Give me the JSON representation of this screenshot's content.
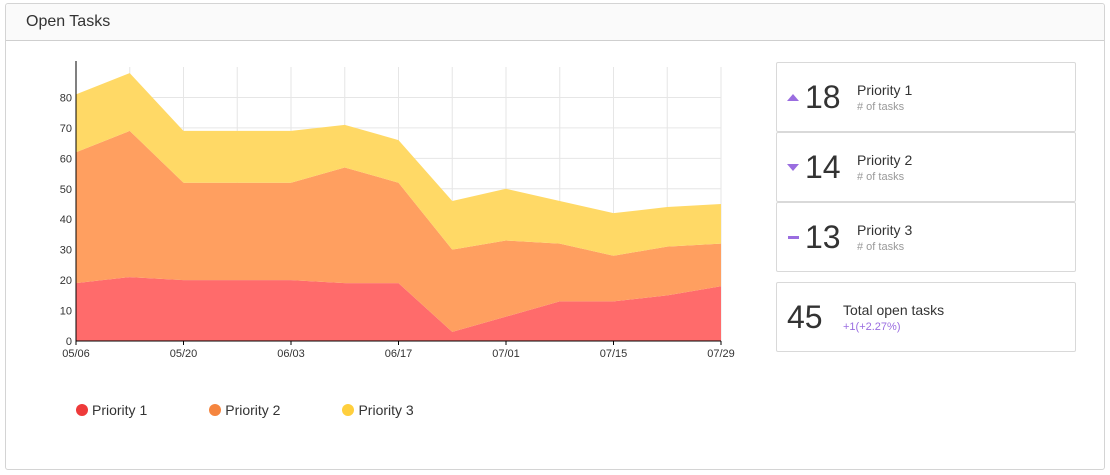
{
  "panel": {
    "title": "Open Tasks"
  },
  "chart_data": {
    "type": "area",
    "stacked": true,
    "x": [
      "05/06",
      "05/13",
      "05/20",
      "05/27",
      "06/03",
      "06/10",
      "06/17",
      "06/24",
      "07/01",
      "07/08",
      "07/15",
      "07/22",
      "07/29"
    ],
    "x_tick_labels": [
      "05/06",
      "05/20",
      "06/03",
      "06/17",
      "07/01",
      "07/15",
      "07/29"
    ],
    "series": [
      {
        "name": "Priority 1",
        "color": "#ff6b6b",
        "values": [
          19,
          21,
          20,
          20,
          20,
          19,
          19,
          3,
          8,
          13,
          13,
          15,
          18
        ]
      },
      {
        "name": "Priority 2",
        "color": "#ff9f60",
        "values": [
          43,
          48,
          32,
          32,
          32,
          38,
          33,
          27,
          25,
          19,
          15,
          16,
          14
        ]
      },
      {
        "name": "Priority 3",
        "color": "#ffd966",
        "values": [
          19,
          19,
          17,
          17,
          17,
          14,
          14,
          16,
          17,
          14,
          14,
          13,
          13
        ]
      }
    ],
    "ylim": [
      0,
      90
    ],
    "y_ticks": [
      0,
      10,
      20,
      30,
      40,
      50,
      60,
      70,
      80
    ],
    "grid": true,
    "legend_placement": "bottom-left"
  },
  "legend": [
    {
      "label": "Priority 1",
      "color": "#ee3a3a"
    },
    {
      "label": "Priority 2",
      "color": "#f5853f"
    },
    {
      "label": "Priority 3",
      "color": "#ffcf3d"
    }
  ],
  "cards": [
    {
      "value": "18",
      "label": "Priority 1",
      "sub": "# of tasks",
      "trend": "up"
    },
    {
      "value": "14",
      "label": "Priority 2",
      "sub": "# of tasks",
      "trend": "down"
    },
    {
      "value": "13",
      "label": "Priority 3",
      "sub": "# of tasks",
      "trend": "flat"
    }
  ],
  "total": {
    "value": "45",
    "label": "Total open tasks",
    "change": "+1(+2.27%)"
  },
  "colors": {
    "accent": "#9a6de0"
  }
}
